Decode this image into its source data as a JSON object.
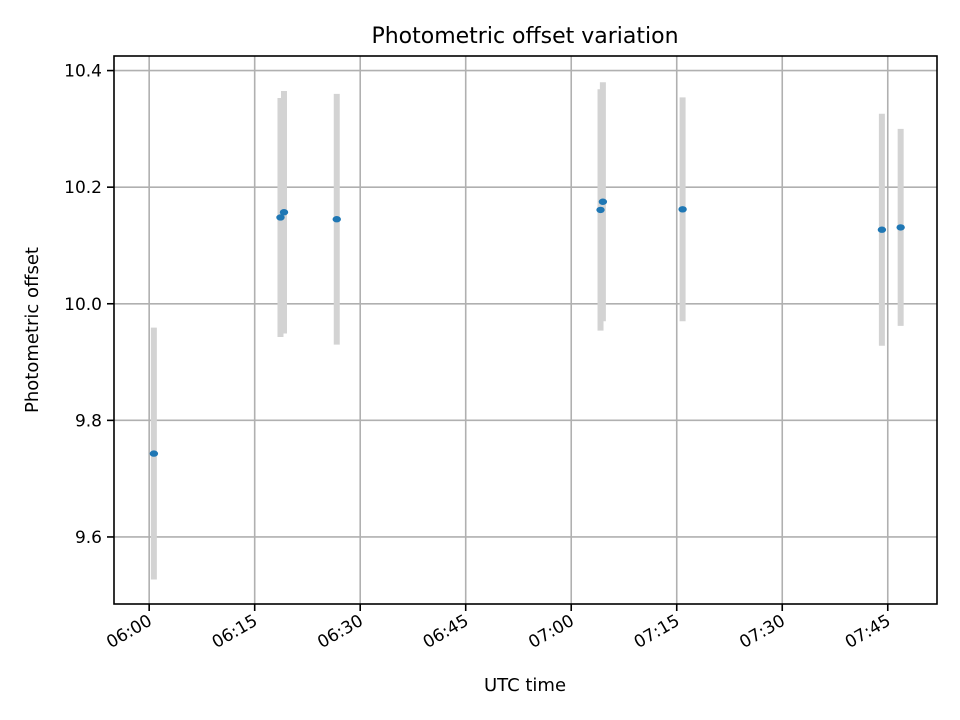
{
  "chart_data": {
    "type": "scatter",
    "title": "Photometric offset variation",
    "xlabel": "UTC time",
    "ylabel": "Photometric offset",
    "x_is_time": true,
    "xlim": [
      "05:55",
      "07:52"
    ],
    "ylim": [
      9.485,
      10.425
    ],
    "x_ticks": [
      "06:00",
      "06:15",
      "06:30",
      "06:45",
      "07:00",
      "07:15",
      "07:30",
      "07:45"
    ],
    "y_ticks": [
      9.6,
      9.8,
      10.0,
      10.2,
      10.4
    ],
    "y_tick_labels": [
      "9.6",
      "9.8",
      "10.0",
      "10.2",
      "10.4"
    ],
    "grid": true,
    "marker_color": "#1f77b4",
    "errorbar_color": "#d3d3d3",
    "points": [
      {
        "x": "06:00:40",
        "y": 9.743,
        "yerr": 0.216
      },
      {
        "x": "06:18:40",
        "y": 10.148,
        "yerr": 0.205
      },
      {
        "x": "06:19:10",
        "y": 10.157,
        "yerr": 0.208
      },
      {
        "x": "06:26:40",
        "y": 10.145,
        "yerr": 0.215
      },
      {
        "x": "07:04:10",
        "y": 10.161,
        "yerr": 0.207
      },
      {
        "x": "07:04:30",
        "y": 10.175,
        "yerr": 0.205
      },
      {
        "x": "07:15:50",
        "y": 10.162,
        "yerr": 0.192
      },
      {
        "x": "07:44:10",
        "y": 10.127,
        "yerr": 0.199
      },
      {
        "x": "07:46:50",
        "y": 10.131,
        "yerr": 0.169
      }
    ]
  }
}
